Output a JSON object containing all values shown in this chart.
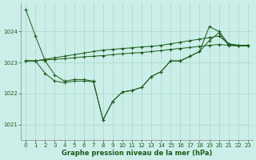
{
  "xlabel_label": "Graphe pression niveau de la mer (hPa)",
  "bg_color": "#cceee8",
  "grid_color": "#aaddcc",
  "line_color": "#1a5c1a",
  "ylim": [
    1020.5,
    1024.9
  ],
  "xlim": [
    -0.5,
    23.5
  ],
  "yticks": [
    1021,
    1022,
    1023,
    1024
  ],
  "xticks": [
    0,
    1,
    2,
    3,
    4,
    5,
    6,
    7,
    8,
    9,
    10,
    11,
    12,
    13,
    14,
    15,
    16,
    17,
    18,
    19,
    20,
    21,
    22,
    23
  ],
  "s1": [
    1024.7,
    1023.85,
    1023.05,
    1022.6,
    1022.4,
    1022.45,
    1022.45,
    1022.4,
    1021.15,
    1021.75,
    1022.05,
    1022.1,
    1022.2,
    1022.55,
    1022.7,
    1023.05,
    1023.05,
    1023.2,
    1023.35,
    1024.15,
    1024.0,
    1023.6,
    1023.55,
    1023.55
  ],
  "s2": [
    1023.05,
    1023.05,
    1023.1,
    1023.15,
    1023.2,
    1023.25,
    1023.3,
    1023.35,
    1023.4,
    1023.42,
    1023.45,
    1023.47,
    1023.5,
    1023.52,
    1023.55,
    1023.6,
    1023.65,
    1023.7,
    1023.75,
    1023.8,
    1023.85,
    1023.6,
    1023.55,
    1023.55
  ],
  "s3": [
    1023.05,
    1023.05,
    1023.08,
    1023.1,
    1023.12,
    1023.15,
    1023.18,
    1023.2,
    1023.22,
    1023.25,
    1023.28,
    1023.3,
    1023.32,
    1023.35,
    1023.38,
    1023.42,
    1023.45,
    1023.48,
    1023.52,
    1023.55,
    1023.58,
    1023.55,
    1023.53,
    1023.53
  ],
  "s4": [
    1023.05,
    1023.05,
    1022.65,
    1022.4,
    1022.35,
    1022.4,
    1022.4,
    1022.38,
    1021.15,
    1021.75,
    1022.05,
    1022.1,
    1022.2,
    1022.55,
    1022.7,
    1023.05,
    1023.05,
    1023.2,
    1023.35,
    1023.7,
    1023.95,
    1023.55,
    1023.55,
    1023.55
  ]
}
